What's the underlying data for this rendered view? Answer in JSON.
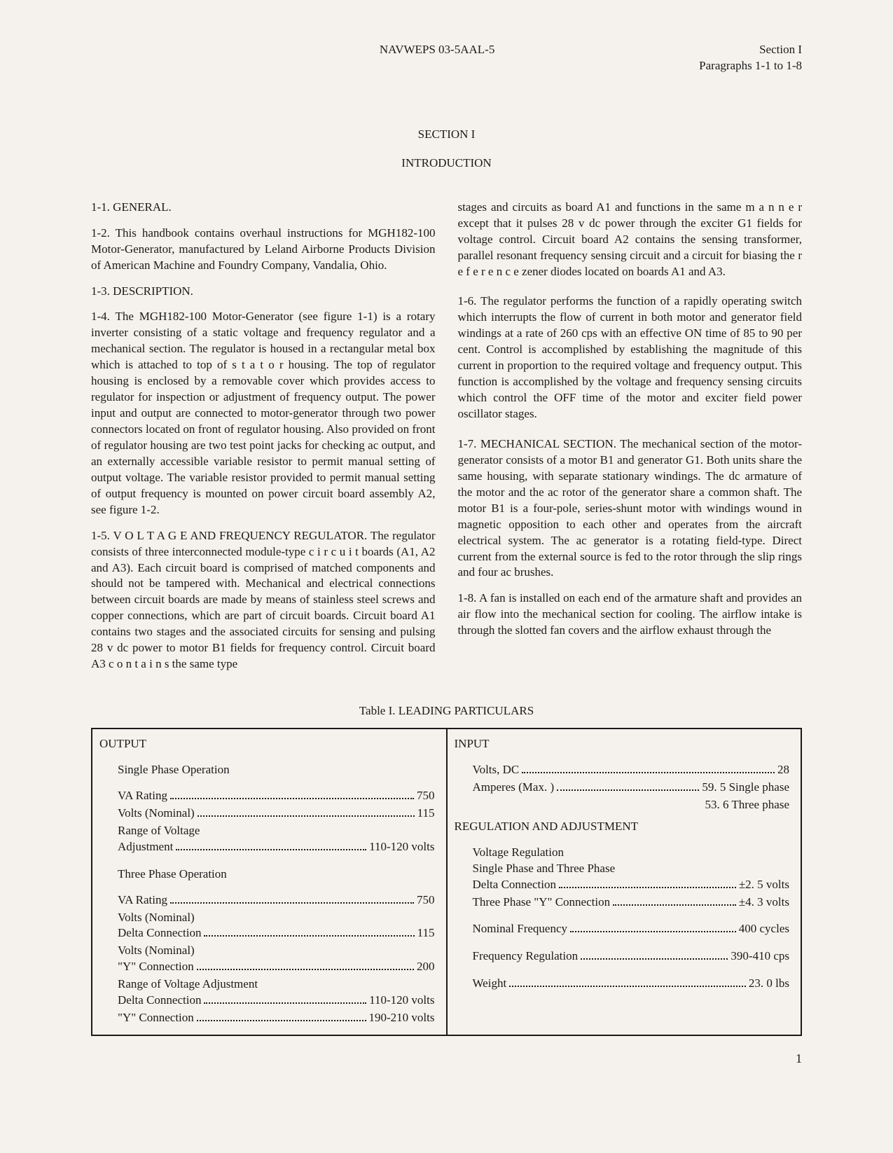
{
  "header": {
    "doc_id": "NAVWEPS 03-5AAL-5",
    "section_label": "Section I",
    "para_range": "Paragraphs 1-1 to 1-8"
  },
  "headings": {
    "section": "SECTION I",
    "intro": "INTRODUCTION"
  },
  "paragraphs": {
    "p1_1": "1-1.  GENERAL.",
    "p1_2": "1-2.  This handbook contains overhaul instructions for MGH182-100 Motor-Generator, manufactured by Leland Airborne Products Division of American Machine and Foundry Company, Vandalia, Ohio.",
    "p1_3": "1-3.  DESCRIPTION.",
    "p1_4": "1-4.  The MGH182-100 Motor-Generator (see figure 1-1) is a rotary inverter consisting of a static voltage and frequency regulator and a mechanical section. The regulator is housed in a rectangular metal box which is attached to top of s t a t o r housing. The top of regulator housing is enclosed by a removable cover which provides access to regulator for inspection or adjustment of frequency output. The power input and output are connected to motor-generator through two power connectors located on front of regulator housing. Also provided on front of regulator housing are two test point jacks for checking ac output, and an externally accessible variable resistor to permit manual setting of output voltage. The variable resistor provided to permit manual setting of output frequency is mounted on power circuit board assembly A2, see figure 1-2.",
    "p1_5_lead": "1-5.  V O L T A G E  AND FREQUENCY REGULATOR. ",
    "p1_5_body": "The regulator consists of three interconnected module-type c i r c u i t boards (A1, A2 and A3). Each circuit board is comprised of matched components and should not be tampered with. Mechanical and electrical connections between circuit boards are made by means of stainless steel screws and copper connections, which are part of circuit boards. Circuit board A1 contains two stages and the associated circuits for sensing and pulsing 28 v dc power to motor B1 fields for frequency control. Circuit board A3 c o n t a i n s the same type",
    "p1_5_cont": "stages and circuits as board A1 and functions in the same m a n n e r except that it pulses 28 v dc power through the exciter G1 fields for voltage control. Circuit board A2 contains the sensing transformer, parallel resonant frequency sensing circuit and a circuit for biasing the r e f e r e n c e zener diodes located on boards A1 and A3.",
    "p1_6": "1-6.  The regulator performs the function of a rapidly operating switch which interrupts the flow of current in both motor and generator field windings at a rate of 260 cps with an effective ON time of 85 to 90 per cent. Control is accomplished by establishing the magnitude of this current in proportion to the required voltage and frequency output. This function is accomplished by the voltage and frequency sensing circuits which control the OFF time of the motor and exciter field power oscillator stages.",
    "p1_7": "1-7.  MECHANICAL SECTION. The mechanical section of the motor-generator consists of a motor B1 and generator G1. Both units share the same housing, with separate stationary windings. The dc armature of the motor and the ac rotor of the generator share a common shaft. The motor B1 is a four-pole, series-shunt motor with windings wound in magnetic opposition to each other and operates from the aircraft electrical system. The ac generator is a rotating field-type. Direct current from the external source is fed to the rotor through the slip rings and four ac brushes.",
    "p1_8": "1-8.  A fan is installed on each end of the armature shaft and provides an air flow into the mechanical section for cooling. The airflow intake is through the slotted fan covers and the airflow exhaust through the"
  },
  "table": {
    "title": "Table I.  LEADING PARTICULARS",
    "output": {
      "heading": "OUTPUT",
      "single_phase_label": "Single Phase Operation",
      "va_rating_label": "VA Rating",
      "va_rating_value": "750",
      "volts_nominal_label": "Volts (Nominal)",
      "volts_nominal_value": "115",
      "range_label": "Range of Voltage",
      "adjustment_label": "Adjustment",
      "adjustment_value": "110-120 volts",
      "three_phase_label": "Three Phase Operation",
      "va_rating3_label": "VA Rating",
      "va_rating3_value": "750",
      "volts_nominal2_label": "Volts (Nominal)",
      "delta_label": "Delta Connection",
      "delta_value": "115",
      "volts_nominal3_label": "Volts (Nominal)",
      "y_label": "\"Y\" Connection",
      "y_value": "200",
      "range2_label": "Range of Voltage Adjustment",
      "delta2_label": "Delta Connection",
      "delta2_value": "110-120 volts",
      "y2_label": "\"Y\" Connection",
      "y2_value": "190-210 volts"
    },
    "input": {
      "heading": "INPUT",
      "volts_dc_label": "Volts, DC",
      "volts_dc_value": "28",
      "amperes_label": "Amperes (Max. )",
      "amperes_value": "59. 5 Single phase",
      "amperes_value2": "53. 6 Three phase",
      "reg_heading": "REGULATION AND ADJUSTMENT",
      "volt_reg_label": "Voltage Regulation",
      "phase_label": "Single Phase and Three Phase",
      "delta_label": "Delta Connection",
      "delta_value": "±2. 5 volts",
      "y_label": "Three Phase \"Y\" Connection",
      "y_value": "±4. 3 volts",
      "freq_label": "Nominal Frequency",
      "freq_value": "400 cycles",
      "freq_reg_label": "Frequency Regulation",
      "freq_reg_value": "390-410 cps",
      "weight_label": "Weight",
      "weight_value": "23. 0 lbs"
    }
  },
  "page_number": "1"
}
